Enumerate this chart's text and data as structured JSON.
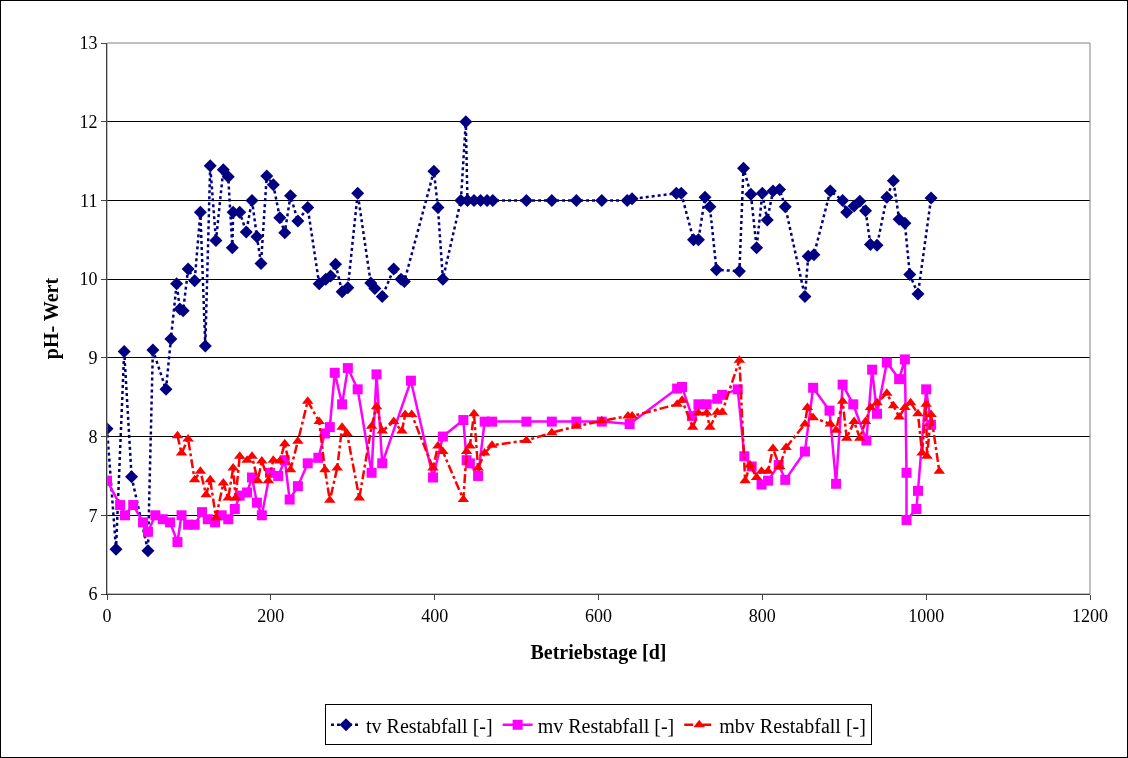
{
  "chart_data": {
    "type": "line",
    "xlabel": "Betriebstage [d]",
    "ylabel": "pH- Wert",
    "xlim": [
      0,
      1200
    ],
    "xticks": [
      0,
      200,
      400,
      600,
      800,
      1000,
      1200
    ],
    "ylim": [
      6,
      13
    ],
    "yticks": [
      6,
      7,
      8,
      9,
      10,
      11,
      12,
      13
    ],
    "grid": "y",
    "legend": "bottom",
    "series": [
      {
        "name": "tv Restabfall [-]",
        "color": "#000080",
        "marker": "diamond",
        "line_style": "dotted",
        "x": [
          0,
          11,
          21,
          30,
          50,
          56,
          72,
          78,
          85,
          89,
          93,
          99,
          107,
          114,
          120,
          126,
          133,
          142,
          148,
          153,
          154,
          162,
          170,
          177,
          183,
          188,
          195,
          203,
          211,
          217,
          224,
          233,
          245,
          259,
          267,
          273,
          279,
          287,
          294,
          306,
          322,
          327,
          336,
          350,
          359,
          363,
          399,
          404,
          410,
          432,
          438,
          440,
          448,
          456,
          464,
          471,
          512,
          543,
          573,
          604,
          635,
          641,
          695,
          701,
          716,
          722,
          730,
          736,
          744,
          772,
          777,
          786,
          793,
          800,
          806,
          813,
          821,
          828,
          852,
          856,
          863,
          883,
          898,
          903,
          912,
          919,
          926,
          932,
          940,
          952,
          960,
          967,
          974,
          980,
          990,
          1006
        ],
        "values": [
          8.1,
          6.57,
          9.08,
          7.49,
          6.55,
          9.1,
          8.6,
          9.24,
          9.94,
          9.62,
          9.6,
          10.13,
          9.98,
          10.85,
          9.15,
          11.44,
          10.49,
          11.39,
          11.3,
          10.4,
          10.85,
          10.85,
          10.6,
          11.0,
          10.54,
          10.2,
          11.31,
          11.2,
          10.78,
          10.59,
          11.06,
          10.74,
          10.91,
          9.94,
          10.0,
          10.04,
          10.19,
          9.84,
          9.89,
          11.09,
          9.95,
          9.88,
          9.78,
          10.13,
          10.0,
          9.97,
          11.37,
          10.91,
          10.0,
          11.0,
          12.0,
          11.0,
          11.0,
          11.0,
          11.0,
          11.0,
          11.0,
          11.0,
          11.0,
          11.0,
          11.0,
          11.02,
          11.09,
          11.09,
          10.5,
          10.5,
          11.04,
          10.92,
          10.12,
          10.1,
          11.41,
          11.08,
          10.4,
          11.09,
          10.75,
          11.12,
          11.14,
          10.92,
          9.78,
          10.29,
          10.31,
          11.12,
          11.0,
          10.85,
          10.93,
          10.99,
          10.87,
          10.44,
          10.43,
          11.04,
          11.25,
          10.76,
          10.71,
          10.06,
          9.81,
          11.03
        ]
      },
      {
        "name": "mv Restabfall [-]",
        "color": "#ff00ff",
        "marker": "square",
        "line_style": "solid",
        "x": [
          0,
          16,
          22,
          32,
          44,
          50,
          59,
          68,
          77,
          86,
          91,
          99,
          107,
          116,
          123,
          132,
          140,
          148,
          156,
          162,
          171,
          177,
          183,
          189,
          199,
          209,
          217,
          223,
          233,
          245,
          258,
          266,
          272,
          278,
          287,
          294,
          306,
          323,
          329,
          336,
          371,
          398,
          410,
          435,
          439,
          443,
          453,
          461,
          470,
          512,
          543,
          573,
          604,
          638,
          696,
          702,
          714,
          722,
          732,
          745,
          751,
          770,
          778,
          787,
          799,
          807,
          820,
          828,
          852,
          862,
          882,
          890,
          898,
          911,
          927,
          934,
          940,
          952,
          967,
          974,
          976,
          976,
          988,
          990,
          1000,
          1006
        ],
        "values": [
          7.44,
          7.13,
          7.0,
          7.13,
          6.91,
          6.79,
          7.0,
          6.95,
          6.91,
          6.66,
          7.0,
          6.88,
          6.88,
          7.04,
          6.95,
          6.91,
          7.0,
          6.95,
          7.08,
          7.25,
          7.29,
          7.48,
          7.16,
          7.0,
          7.54,
          7.5,
          7.7,
          7.2,
          7.37,
          7.66,
          7.73,
          8.04,
          8.12,
          8.81,
          8.41,
          8.87,
          8.6,
          7.54,
          8.79,
          7.66,
          8.71,
          7.48,
          8.0,
          8.21,
          7.7,
          7.66,
          7.5,
          8.19,
          8.19,
          8.19,
          8.19,
          8.19,
          8.19,
          8.16,
          8.61,
          8.63,
          8.26,
          8.41,
          8.41,
          8.48,
          8.53,
          8.6,
          7.75,
          7.62,
          7.39,
          7.44,
          7.64,
          7.45,
          7.81,
          8.62,
          8.33,
          7.4,
          8.66,
          8.41,
          7.95,
          8.85,
          8.29,
          8.94,
          8.73,
          8.98,
          7.54,
          6.94,
          7.08,
          7.31,
          8.6,
          8.15
        ]
      },
      {
        "name": "mbv Restabfall [-]",
        "color": "#ff0000",
        "marker": "triangle",
        "line_style": "dashed",
        "x": [
          86,
          91,
          99,
          107,
          114,
          121,
          126,
          133,
          142,
          148,
          154,
          157,
          162,
          171,
          177,
          184,
          189,
          197,
          203,
          211,
          217,
          224,
          233,
          245,
          259,
          266,
          272,
          281,
          287,
          293,
          308,
          323,
          329,
          336,
          350,
          360,
          364,
          372,
          398,
          404,
          410,
          435,
          439,
          443,
          448,
          453,
          461,
          470,
          512,
          543,
          573,
          604,
          636,
          641,
          696,
          702,
          715,
          722,
          732,
          736,
          745,
          751,
          772,
          779,
          785,
          793,
          799,
          807,
          813,
          821,
          829,
          852,
          855,
          862,
          883,
          890,
          898,
          903,
          912,
          919,
          926,
          932,
          940,
          952,
          960,
          967,
          974,
          981,
          990,
          995,
          1000,
          1001,
          1006,
          1016
        ],
        "values": [
          8.01,
          7.79,
          7.97,
          7.45,
          7.56,
          7.26,
          7.45,
          6.97,
          7.41,
          7.22,
          7.6,
          7.22,
          7.75,
          7.7,
          7.75,
          7.44,
          7.69,
          7.44,
          7.7,
          7.69,
          7.91,
          7.58,
          7.94,
          8.45,
          8.19,
          7.58,
          7.19,
          7.6,
          8.12,
          8.04,
          7.22,
          8.13,
          8.38,
          8.07,
          8.19,
          8.07,
          8.28,
          8.28,
          7.6,
          7.88,
          7.81,
          7.2,
          7.81,
          7.88,
          8.29,
          7.6,
          7.79,
          7.89,
          7.95,
          8.05,
          8.13,
          8.2,
          8.26,
          8.26,
          8.41,
          8.46,
          8.12,
          8.3,
          8.3,
          8.12,
          8.31,
          8.31,
          8.97,
          7.44,
          7.64,
          7.48,
          7.56,
          7.56,
          7.85,
          7.62,
          7.86,
          8.16,
          8.37,
          8.24,
          8.16,
          8.08,
          8.45,
          7.98,
          8.19,
          7.98,
          8.19,
          8.37,
          8.43,
          8.55,
          8.39,
          8.25,
          8.37,
          8.43,
          8.29,
          7.79,
          8.41,
          7.75,
          8.28,
          7.56
        ]
      }
    ]
  }
}
